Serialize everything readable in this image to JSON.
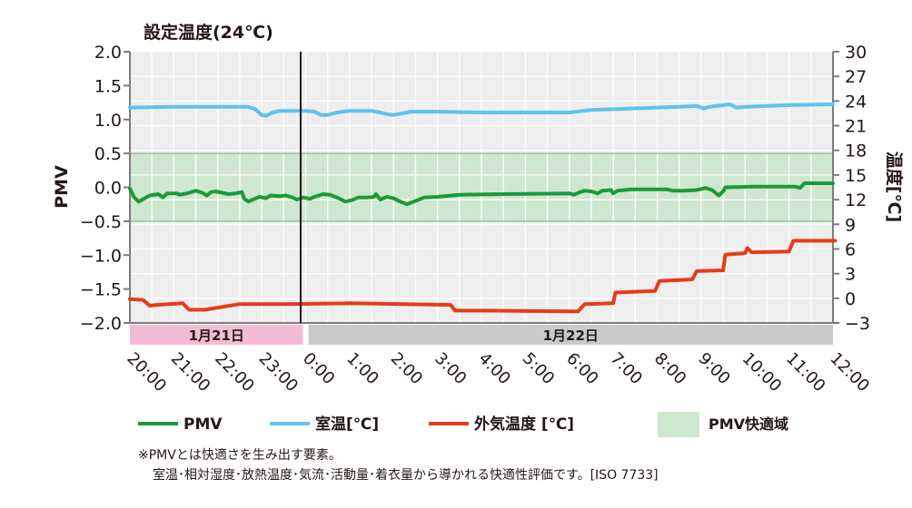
{
  "chart_data": {
    "type": "line",
    "annotation": "設定温度(24℃)",
    "y_left": {
      "label": "PMV",
      "range": [
        -2.0,
        2.0
      ],
      "ticks": [
        "2.0",
        "1.5",
        "1.0",
        "0.5",
        "0.0",
        "−0.5",
        "−1.0",
        "−1.5",
        "−2.0"
      ]
    },
    "y_right": {
      "label": "温度[℃]",
      "range": [
        -3,
        30
      ],
      "ticks": [
        "30",
        "27",
        "24",
        "21",
        "18",
        "15",
        "12",
        "9",
        "6",
        "3",
        "0",
        "−3"
      ]
    },
    "x_ticks": [
      "20:00",
      "21:00",
      "22:00",
      "23:00",
      "0:00",
      "1:00",
      "2:00",
      "3:00",
      "4:00",
      "5:00",
      "6:00",
      "7:00",
      "8:00",
      "9:00",
      "10:00",
      "11:00",
      "12:00"
    ],
    "date_bands": [
      {
        "label": "1月21日",
        "color": "#f4bcd4",
        "from": 0,
        "to": 4
      },
      {
        "label": "1月22日",
        "color": "#c9caca",
        "from": 4,
        "to": 16
      }
    ],
    "comfort_band": {
      "label": "PMV快適域",
      "pmv_range": [
        -0.5,
        0.5
      ],
      "color": "#cfe6cf"
    },
    "grid": true,
    "series": [
      {
        "name": "PMV",
        "axis": "left",
        "color": "#1a9a3b",
        "points": [
          [
            0,
            -0.02
          ],
          [
            0.1,
            -0.15
          ],
          [
            0.2,
            -0.21
          ],
          [
            0.45,
            -0.12
          ],
          [
            0.65,
            -0.1
          ],
          [
            0.75,
            -0.15
          ],
          [
            0.85,
            -0.09
          ],
          [
            1.05,
            -0.09
          ],
          [
            1.15,
            -0.11
          ],
          [
            1.35,
            -0.08
          ],
          [
            1.5,
            -0.05
          ],
          [
            1.65,
            -0.08
          ],
          [
            1.75,
            -0.12
          ],
          [
            1.85,
            -0.07
          ],
          [
            1.95,
            -0.06
          ],
          [
            2.1,
            -0.08
          ],
          [
            2.25,
            -0.1
          ],
          [
            2.4,
            -0.09
          ],
          [
            2.55,
            -0.07
          ],
          [
            2.6,
            -0.17
          ],
          [
            2.7,
            -0.21
          ],
          [
            2.8,
            -0.18
          ],
          [
            2.95,
            -0.14
          ],
          [
            3.1,
            -0.16
          ],
          [
            3.2,
            -0.12
          ],
          [
            3.4,
            -0.13
          ],
          [
            3.55,
            -0.12
          ],
          [
            3.7,
            -0.15
          ],
          [
            3.8,
            -0.18
          ],
          [
            3.95,
            -0.15
          ],
          [
            4.1,
            -0.17
          ],
          [
            4.2,
            -0.14
          ],
          [
            4.4,
            -0.1
          ],
          [
            4.55,
            -0.11
          ],
          [
            4.75,
            -0.16
          ],
          [
            4.9,
            -0.21
          ],
          [
            5.05,
            -0.19
          ],
          [
            5.2,
            -0.15
          ],
          [
            5.4,
            -0.15
          ],
          [
            5.55,
            -0.14
          ],
          [
            5.6,
            -0.1
          ],
          [
            5.7,
            -0.18
          ],
          [
            5.85,
            -0.14
          ],
          [
            6.0,
            -0.16
          ],
          [
            6.15,
            -0.21
          ],
          [
            6.3,
            -0.25
          ],
          [
            6.5,
            -0.2
          ],
          [
            6.7,
            -0.15
          ],
          [
            7.0,
            -0.14
          ],
          [
            7.5,
            -0.11
          ],
          [
            8.5,
            -0.1
          ],
          [
            10.0,
            -0.09
          ],
          [
            10.1,
            -0.11
          ],
          [
            10.25,
            -0.07
          ],
          [
            10.35,
            -0.05
          ],
          [
            10.5,
            -0.06
          ],
          [
            10.65,
            -0.09
          ],
          [
            10.75,
            -0.05
          ],
          [
            10.95,
            -0.04
          ],
          [
            11.0,
            -0.09
          ],
          [
            11.1,
            -0.05
          ],
          [
            11.4,
            -0.03
          ],
          [
            12.0,
            -0.03
          ],
          [
            12.2,
            -0.03
          ],
          [
            12.35,
            -0.05
          ],
          [
            12.6,
            -0.05
          ],
          [
            12.9,
            -0.04
          ],
          [
            13.1,
            -0.01
          ],
          [
            13.25,
            -0.04
          ],
          [
            13.4,
            -0.12
          ],
          [
            13.5,
            -0.06
          ],
          [
            13.55,
            0.0
          ],
          [
            14.2,
            0.01
          ],
          [
            15.15,
            0.01
          ],
          [
            15.25,
            -0.01
          ],
          [
            15.35,
            0.06
          ],
          [
            16.0,
            0.06
          ]
        ]
      },
      {
        "name": "室温[℃]",
        "axis": "right",
        "color": "#5ec3ee",
        "points": [
          [
            0,
            23.2
          ],
          [
            1,
            23.3
          ],
          [
            2,
            23.3
          ],
          [
            2.7,
            23.3
          ],
          [
            2.85,
            23.0
          ],
          [
            3.0,
            22.3
          ],
          [
            3.1,
            22.2
          ],
          [
            3.25,
            22.6
          ],
          [
            3.4,
            22.8
          ],
          [
            4.0,
            22.8
          ],
          [
            4.2,
            22.7
          ],
          [
            4.35,
            22.3
          ],
          [
            4.5,
            22.3
          ],
          [
            4.7,
            22.6
          ],
          [
            5.0,
            22.8
          ],
          [
            5.5,
            22.8
          ],
          [
            5.7,
            22.6
          ],
          [
            5.85,
            22.4
          ],
          [
            6.0,
            22.3
          ],
          [
            6.2,
            22.5
          ],
          [
            6.4,
            22.7
          ],
          [
            7.0,
            22.7
          ],
          [
            8.0,
            22.6
          ],
          [
            9.5,
            22.6
          ],
          [
            10.0,
            22.6
          ],
          [
            10.5,
            22.9
          ],
          [
            11.0,
            23.0
          ],
          [
            12.5,
            23.3
          ],
          [
            12.9,
            23.4
          ],
          [
            13.05,
            23.1
          ],
          [
            13.2,
            23.3
          ],
          [
            13.5,
            23.5
          ],
          [
            13.65,
            23.6
          ],
          [
            13.8,
            23.2
          ],
          [
            14.0,
            23.3
          ],
          [
            15.0,
            23.5
          ],
          [
            16.0,
            23.6
          ]
        ]
      },
      {
        "name": "外気温度 [℃]",
        "axis": "right",
        "color": "#e63b1b",
        "points": [
          [
            0,
            -0.1
          ],
          [
            0.3,
            -0.2
          ],
          [
            0.45,
            -0.9
          ],
          [
            0.6,
            -0.8
          ],
          [
            1.2,
            -0.6
          ],
          [
            1.35,
            -1.4
          ],
          [
            1.7,
            -1.4
          ],
          [
            2.5,
            -0.7
          ],
          [
            3.5,
            -0.7
          ],
          [
            5.0,
            -0.6
          ],
          [
            7.3,
            -0.8
          ],
          [
            7.4,
            -1.5
          ],
          [
            8.0,
            -1.5
          ],
          [
            10.0,
            -1.6
          ],
          [
            10.2,
            -1.6
          ],
          [
            10.35,
            -0.7
          ],
          [
            11.0,
            -0.6
          ],
          [
            11.05,
            0.7
          ],
          [
            11.95,
            0.9
          ],
          [
            12.05,
            2.1
          ],
          [
            12.8,
            2.3
          ],
          [
            12.9,
            3.3
          ],
          [
            13.5,
            3.4
          ],
          [
            13.55,
            5.3
          ],
          [
            14.0,
            5.5
          ],
          [
            14.05,
            6.1
          ],
          [
            14.15,
            5.6
          ],
          [
            15.0,
            5.7
          ],
          [
            15.1,
            7.0
          ],
          [
            16.0,
            7.0
          ],
          [
            16.05,
            7.0
          ]
        ]
      }
    ],
    "legend": [
      "PMV",
      "室温[℃]",
      "外気温度 [℃]",
      "PMV快適域"
    ]
  },
  "footnote": {
    "line1": "※PMVとは快適さを生み出す要素。",
    "line2": "室温･相対湿度･放熱温度･気流･活動量･着衣量から導かれる快適性評価です。[ISO 7733]"
  }
}
